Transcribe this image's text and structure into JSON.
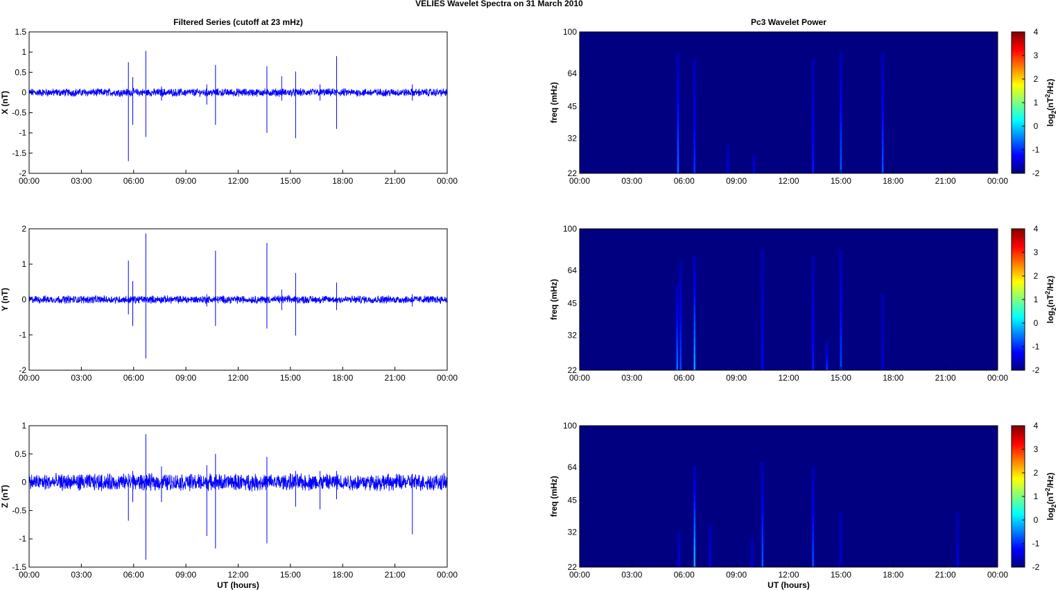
{
  "figure": {
    "title": "VELIES Wavelet Spectra on 31 March      2010"
  },
  "chart_data": [
    {
      "type": "line",
      "panel": "series-x",
      "title": "Filtered Series (cutoff at 23 mHz)",
      "xlabel": "",
      "ylabel": "X (nT)",
      "x_ticks": [
        "00:00",
        "03:00",
        "06:00",
        "09:00",
        "12:00",
        "15:00",
        "18:00",
        "21:00",
        "00:00"
      ],
      "xlim_hours": [
        0,
        24
      ],
      "ylim": [
        -2,
        1.5
      ],
      "y_ticks": [
        -2,
        -1.5,
        -1,
        -0.5,
        0,
        0.5,
        1,
        1.5
      ],
      "noise_amplitude": 0.08,
      "spikes": [
        {
          "t": 5.7,
          "hi": 0.75,
          "lo": -1.7
        },
        {
          "t": 5.95,
          "hi": 0.38,
          "lo": -0.8
        },
        {
          "t": 6.7,
          "hi": 1.03,
          "lo": -1.1
        },
        {
          "t": 7.6,
          "hi": 0.15,
          "lo": -0.2
        },
        {
          "t": 10.2,
          "hi": 0.2,
          "lo": -0.3
        },
        {
          "t": 10.7,
          "hi": 0.68,
          "lo": -0.8
        },
        {
          "t": 13.65,
          "hi": 0.65,
          "lo": -1.0
        },
        {
          "t": 14.5,
          "hi": 0.4,
          "lo": -0.2
        },
        {
          "t": 15.3,
          "hi": 0.52,
          "lo": -1.13
        },
        {
          "t": 16.7,
          "hi": 0.2,
          "lo": -0.2
        },
        {
          "t": 17.65,
          "hi": 0.9,
          "lo": -0.9
        },
        {
          "t": 22.0,
          "hi": 0.2,
          "lo": -0.2
        }
      ]
    },
    {
      "type": "line",
      "panel": "series-y",
      "title": "",
      "xlabel": "",
      "ylabel": "Y (nT)",
      "x_ticks": [
        "00:00",
        "03:00",
        "06:00",
        "09:00",
        "12:00",
        "15:00",
        "18:00",
        "21:00",
        "00:00"
      ],
      "xlim_hours": [
        0,
        24
      ],
      "ylim": [
        -2,
        2
      ],
      "y_ticks": [
        -2,
        -1,
        0,
        1,
        2
      ],
      "noise_amplitude": 0.09,
      "spikes": [
        {
          "t": 5.7,
          "hi": 1.1,
          "lo": -0.42
        },
        {
          "t": 5.95,
          "hi": 0.52,
          "lo": -0.75
        },
        {
          "t": 6.7,
          "hi": 1.87,
          "lo": -1.67
        },
        {
          "t": 10.2,
          "hi": 0.15,
          "lo": -0.2
        },
        {
          "t": 10.7,
          "hi": 1.38,
          "lo": -0.75
        },
        {
          "t": 13.65,
          "hi": 1.6,
          "lo": -0.82
        },
        {
          "t": 14.5,
          "hi": 0.28,
          "lo": -0.3
        },
        {
          "t": 15.3,
          "hi": 0.75,
          "lo": -1.02
        },
        {
          "t": 17.65,
          "hi": 0.48,
          "lo": -0.3
        },
        {
          "t": 22.0,
          "hi": 0.15,
          "lo": -0.2
        }
      ]
    },
    {
      "type": "line",
      "panel": "series-z",
      "title": "",
      "xlabel": "UT (hours)",
      "ylabel": "Z (nT)",
      "x_ticks": [
        "00:00",
        "03:00",
        "06:00",
        "09:00",
        "12:00",
        "15:00",
        "18:00",
        "21:00",
        "00:00"
      ],
      "xlim_hours": [
        0,
        24
      ],
      "ylim": [
        -1.5,
        1
      ],
      "y_ticks": [
        -1.5,
        -1,
        -0.5,
        0,
        0.5,
        1
      ],
      "noise_amplitude": 0.12,
      "spikes": [
        {
          "t": 5.7,
          "hi": 0.15,
          "lo": -0.68
        },
        {
          "t": 5.95,
          "hi": 0.2,
          "lo": -0.35
        },
        {
          "t": 6.7,
          "hi": 0.85,
          "lo": -1.37
        },
        {
          "t": 7.6,
          "hi": 0.28,
          "lo": -0.35
        },
        {
          "t": 10.2,
          "hi": 0.3,
          "lo": -0.95
        },
        {
          "t": 10.7,
          "hi": 0.5,
          "lo": -1.17
        },
        {
          "t": 13.65,
          "hi": 0.45,
          "lo": -1.08
        },
        {
          "t": 15.3,
          "hi": 0.2,
          "lo": -0.43
        },
        {
          "t": 16.7,
          "hi": 0.2,
          "lo": -0.48
        },
        {
          "t": 17.65,
          "hi": 0.2,
          "lo": -0.3
        },
        {
          "t": 22.0,
          "hi": 0.15,
          "lo": -0.92
        }
      ]
    },
    {
      "type": "heatmap",
      "panel": "spectrum-x",
      "title": "Pc3 Wavelet Power",
      "xlabel": "",
      "ylabel": "freq (mHz)",
      "x_ticks": [
        "00:00",
        "03:00",
        "06:00",
        "09:00",
        "12:00",
        "15:00",
        "18:00",
        "21:00",
        "00:00"
      ],
      "xlim_hours": [
        0,
        24
      ],
      "freq_range_mhz": [
        22,
        100
      ],
      "y_scale": "log",
      "y_ticks": [
        22,
        32,
        45,
        64,
        100
      ],
      "colorbar": {
        "label": "log2(nT2/Hz)",
        "ticks": [
          -2,
          -1,
          0,
          1,
          2,
          3,
          4
        ],
        "range": [
          -2,
          4
        ],
        "colormap": "jet"
      },
      "background_level": -2,
      "streaks": [
        {
          "t": 5.65,
          "top_mhz": 80,
          "peak": -0.3
        },
        {
          "t": 6.6,
          "top_mhz": 75,
          "peak": -0.8
        },
        {
          "t": 8.5,
          "top_mhz": 30,
          "peak": -1.5
        },
        {
          "t": 10.0,
          "top_mhz": 27,
          "peak": -1.4
        },
        {
          "t": 13.4,
          "top_mhz": 75,
          "peak": -1.0
        },
        {
          "t": 15.0,
          "top_mhz": 80,
          "peak": -0.4
        },
        {
          "t": 17.4,
          "top_mhz": 80,
          "peak": -0.5
        }
      ]
    },
    {
      "type": "heatmap",
      "panel": "spectrum-y",
      "title": "",
      "xlabel": "",
      "ylabel": "freq (mHz)",
      "x_ticks": [
        "00:00",
        "03:00",
        "06:00",
        "09:00",
        "12:00",
        "15:00",
        "18:00",
        "21:00",
        "00:00"
      ],
      "xlim_hours": [
        0,
        24
      ],
      "freq_range_mhz": [
        22,
        100
      ],
      "y_scale": "log",
      "y_ticks": [
        22,
        32,
        45,
        64,
        100
      ],
      "colorbar": {
        "label": "log2(nT2/Hz)",
        "ticks": [
          -2,
          -1,
          0,
          1,
          2,
          3,
          4
        ],
        "range": [
          -2,
          4
        ],
        "colormap": "jet"
      },
      "background_level": -2,
      "streaks": [
        {
          "t": 5.6,
          "top_mhz": 55,
          "peak": -0.2
        },
        {
          "t": 5.8,
          "top_mhz": 70,
          "peak": -0.6
        },
        {
          "t": 6.6,
          "top_mhz": 75,
          "peak": 0.3
        },
        {
          "t": 10.5,
          "top_mhz": 80,
          "peak": -1.2
        },
        {
          "t": 13.4,
          "top_mhz": 75,
          "peak": -1.0
        },
        {
          "t": 14.2,
          "top_mhz": 30,
          "peak": -0.7
        },
        {
          "t": 15.0,
          "top_mhz": 80,
          "peak": -0.6
        },
        {
          "t": 17.4,
          "top_mhz": 50,
          "peak": -1.6
        }
      ]
    },
    {
      "type": "heatmap",
      "panel": "spectrum-z",
      "title": "",
      "xlabel": "UT (hours)",
      "ylabel": "freq (mHz)",
      "x_ticks": [
        "00:00",
        "03:00",
        "06:00",
        "09:00",
        "12:00",
        "15:00",
        "18:00",
        "21:00",
        "00:00"
      ],
      "xlim_hours": [
        0,
        24
      ],
      "freq_range_mhz": [
        22,
        100
      ],
      "y_scale": "log",
      "y_ticks": [
        22,
        32,
        45,
        64,
        100
      ],
      "colorbar": {
        "label": "log2(nT2/Hz)",
        "ticks": [
          -2,
          -1,
          0,
          1,
          2,
          3,
          4
        ],
        "range": [
          -2,
          4
        ],
        "colormap": "jet"
      },
      "background_level": -2,
      "streaks": [
        {
          "t": 5.7,
          "top_mhz": 32,
          "peak": -1.4
        },
        {
          "t": 6.6,
          "top_mhz": 65,
          "peak": 0.6
        },
        {
          "t": 7.5,
          "top_mhz": 35,
          "peak": -1.4
        },
        {
          "t": 9.9,
          "top_mhz": 30,
          "peak": -1.5
        },
        {
          "t": 10.5,
          "top_mhz": 68,
          "peak": -0.4
        },
        {
          "t": 13.4,
          "top_mhz": 65,
          "peak": -0.5
        },
        {
          "t": 15.0,
          "top_mhz": 40,
          "peak": -1.5
        },
        {
          "t": 21.7,
          "top_mhz": 40,
          "peak": -1.5
        }
      ]
    }
  ]
}
